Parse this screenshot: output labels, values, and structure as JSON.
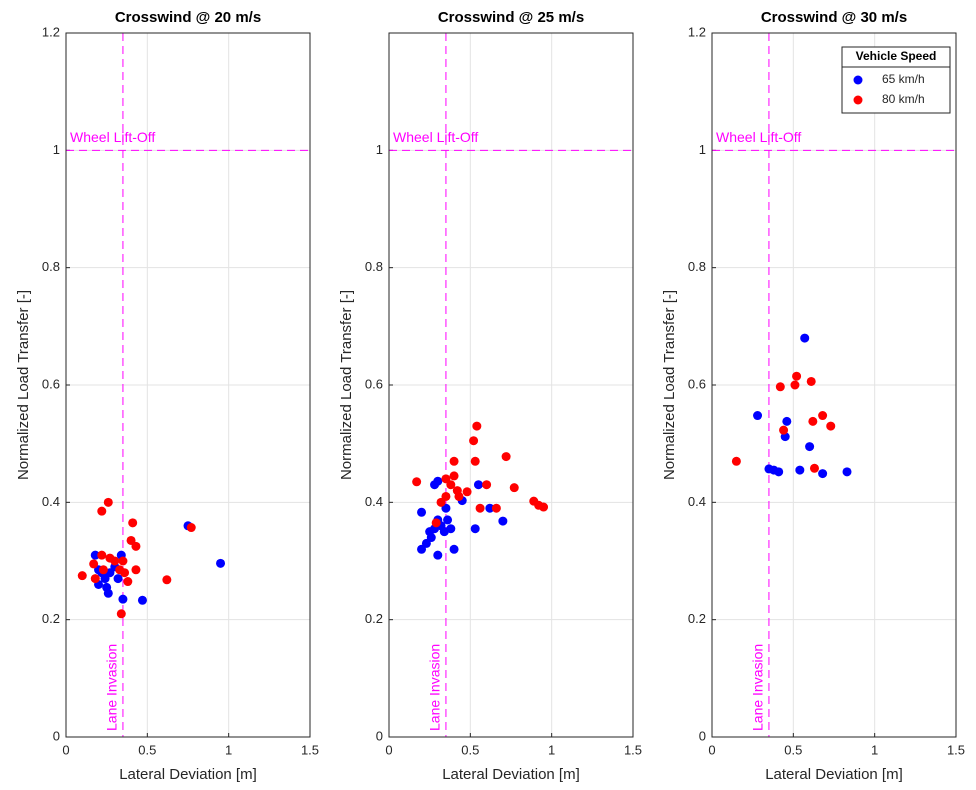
{
  "chart_data": [
    {
      "type": "scatter",
      "title": "Crosswind @ 20 m/s",
      "x_label": "Lateral Deviation [m]",
      "y_label": "Normalized Load Transfer [-]",
      "xlim": [
        0,
        1.5
      ],
      "ylim": [
        0,
        1.2
      ],
      "xticks": [
        0,
        0.5,
        1,
        1.5
      ],
      "yticks": [
        0,
        0.2,
        0.4,
        0.6,
        0.8,
        1,
        1.2
      ],
      "grid": true,
      "annotations": {
        "hline": {
          "value": 1,
          "label": "Wheel Lift-Off",
          "color": "#ff00ff"
        },
        "vline": {
          "value": 0.35,
          "label": "Lane Invasion",
          "color": "#ff00ff"
        }
      },
      "series": [
        {
          "color": "#0000ff",
          "x": [
            0.18,
            0.2,
            0.2,
            0.22,
            0.24,
            0.25,
            0.26,
            0.27,
            0.3,
            0.32,
            0.34,
            0.35,
            0.47,
            0.75,
            0.95
          ],
          "values": [
            0.31,
            0.285,
            0.26,
            0.28,
            0.27,
            0.255,
            0.245,
            0.28,
            0.29,
            0.27,
            0.31,
            0.235,
            0.233,
            0.36,
            0.296
          ]
        },
        {
          "color": "#ff0000",
          "x": [
            0.1,
            0.17,
            0.18,
            0.22,
            0.23,
            0.22,
            0.26,
            0.27,
            0.3,
            0.33,
            0.34,
            0.35,
            0.36,
            0.38,
            0.4,
            0.41,
            0.43,
            0.43,
            0.62,
            0.77
          ],
          "values": [
            0.275,
            0.295,
            0.27,
            0.31,
            0.285,
            0.385,
            0.4,
            0.305,
            0.3,
            0.285,
            0.21,
            0.3,
            0.28,
            0.265,
            0.335,
            0.365,
            0.325,
            0.285,
            0.268,
            0.357
          ]
        }
      ]
    },
    {
      "type": "scatter",
      "title": "Crosswind @ 25 m/s",
      "x_label": "Lateral Deviation [m]",
      "y_label": "Normalized Load Transfer [-]",
      "xlim": [
        0,
        1.5
      ],
      "ylim": [
        0,
        1.2
      ],
      "xticks": [
        0,
        0.5,
        1,
        1.5
      ],
      "yticks": [
        0,
        0.2,
        0.4,
        0.6,
        0.8,
        1
      ],
      "grid": true,
      "annotations": {
        "hline": {
          "value": 1,
          "label": "Wheel Lift-Off",
          "color": "#ff00ff"
        },
        "vline": {
          "value": 0.35,
          "label": "Lane Invasion",
          "color": "#ff00ff"
        }
      },
      "series": [
        {
          "color": "#0000ff",
          "x": [
            0.2,
            0.2,
            0.23,
            0.25,
            0.26,
            0.28,
            0.28,
            0.3,
            0.3,
            0.3,
            0.32,
            0.34,
            0.35,
            0.36,
            0.38,
            0.4,
            0.45,
            0.53,
            0.55,
            0.62,
            0.7
          ],
          "values": [
            0.32,
            0.383,
            0.33,
            0.35,
            0.34,
            0.355,
            0.43,
            0.37,
            0.31,
            0.436,
            0.36,
            0.35,
            0.39,
            0.37,
            0.355,
            0.32,
            0.403,
            0.355,
            0.43,
            0.39,
            0.368
          ]
        },
        {
          "color": "#ff0000",
          "x": [
            0.17,
            0.29,
            0.32,
            0.35,
            0.35,
            0.38,
            0.4,
            0.4,
            0.42,
            0.43,
            0.48,
            0.52,
            0.53,
            0.54,
            0.56,
            0.6,
            0.66,
            0.72,
            0.77,
            0.89,
            0.92,
            0.95
          ],
          "values": [
            0.435,
            0.365,
            0.4,
            0.41,
            0.44,
            0.43,
            0.47,
            0.445,
            0.42,
            0.41,
            0.418,
            0.505,
            0.47,
            0.53,
            0.39,
            0.43,
            0.39,
            0.478,
            0.425,
            0.402,
            0.395,
            0.392
          ]
        }
      ]
    },
    {
      "type": "scatter",
      "title": "Crosswind @ 30 m/s",
      "x_label": "Lateral Deviation [m]",
      "y_label": "Normalized Load Transfer [-]",
      "xlim": [
        0,
        1.5
      ],
      "ylim": [
        0,
        1.2
      ],
      "xticks": [
        0,
        0.5,
        1,
        1.5
      ],
      "yticks": [
        0,
        0.2,
        0.4,
        0.6,
        0.8,
        1,
        1.2
      ],
      "grid": true,
      "legend": "northeast",
      "legend_title": "Vehicle Speed",
      "annotations": {
        "hline": {
          "value": 1,
          "label": "Wheel Lift-Off",
          "color": "#ff00ff"
        },
        "vline": {
          "value": 0.35,
          "label": "Lane Invasion",
          "color": "#ff00ff"
        }
      },
      "series": [
        {
          "name": "65 km/h",
          "color": "#0000ff",
          "x": [
            0.28,
            0.35,
            0.38,
            0.41,
            0.45,
            0.46,
            0.54,
            0.57,
            0.6,
            0.68,
            0.83
          ],
          "values": [
            0.548,
            0.457,
            0.455,
            0.452,
            0.512,
            0.538,
            0.455,
            0.68,
            0.495,
            0.449,
            0.452
          ]
        },
        {
          "name": "80 km/h",
          "color": "#ff0000",
          "x": [
            0.15,
            0.42,
            0.44,
            0.51,
            0.52,
            0.61,
            0.62,
            0.63,
            0.68,
            0.73
          ],
          "values": [
            0.47,
            0.597,
            0.523,
            0.6,
            0.615,
            0.606,
            0.538,
            0.458,
            0.548,
            0.53
          ]
        }
      ]
    }
  ]
}
